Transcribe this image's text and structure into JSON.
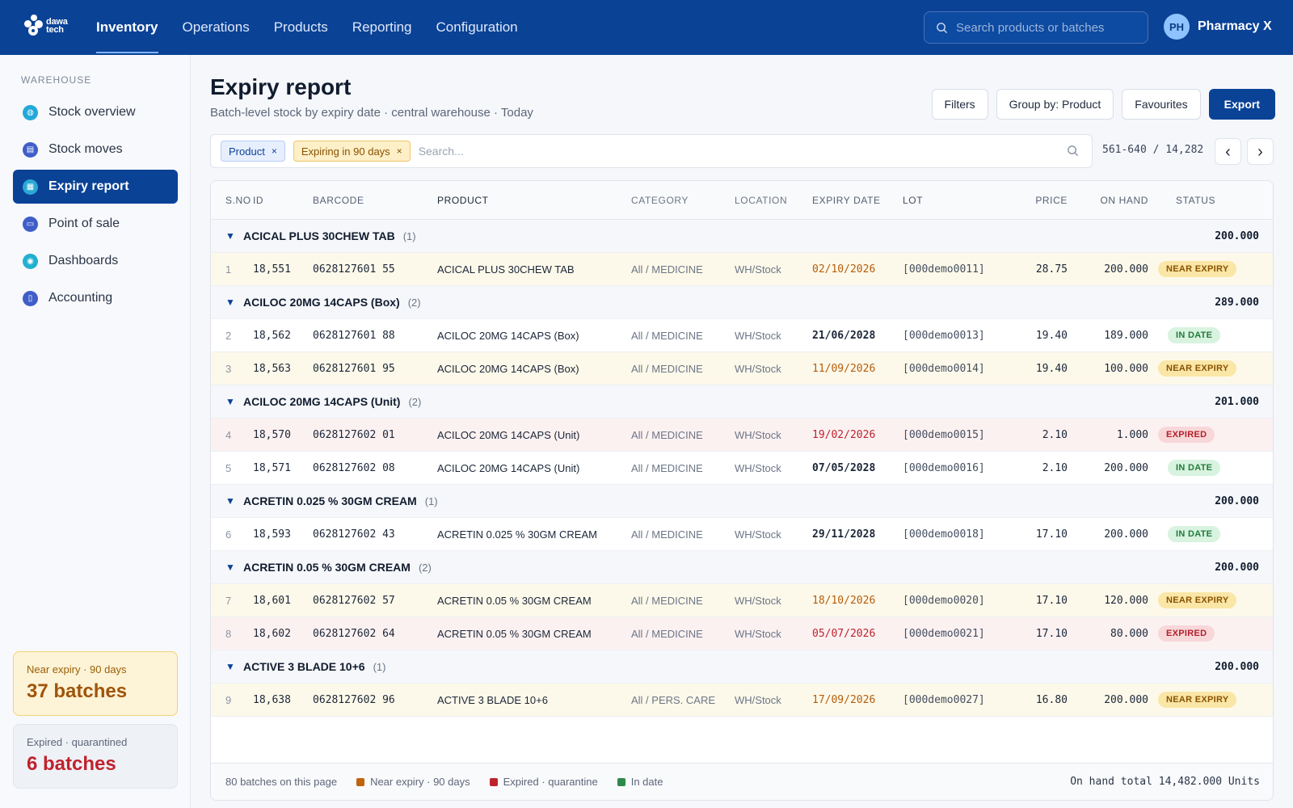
{
  "app": {
    "logo_text_1": "dawa",
    "logo_text_2": "tech",
    "nav": [
      {
        "label": "Inventory",
        "active": true
      },
      {
        "label": "Operations"
      },
      {
        "label": "Products"
      },
      {
        "label": "Reporting"
      },
      {
        "label": "Configuration"
      }
    ],
    "search_placeholder": "Search products or batches",
    "user": {
      "initials": "PH",
      "name": "Pharmacy X"
    }
  },
  "sidebar": {
    "section": "WAREHOUSE",
    "items": [
      {
        "label": "Stock overview",
        "icon": "globe-icon"
      },
      {
        "label": "Stock moves",
        "icon": "truck-icon"
      },
      {
        "label": "Expiry report",
        "icon": "calendar-icon",
        "active": true
      },
      {
        "label": "Point of sale",
        "icon": "monitor-icon"
      },
      {
        "label": "Dashboards",
        "icon": "gauge-icon"
      },
      {
        "label": "Accounting",
        "icon": "document-icon"
      }
    ],
    "near_card": {
      "label": "Near expiry · 90 days",
      "value": "37 batches"
    },
    "expired_card": {
      "label": "Expired · quarantined",
      "value": "6 batches"
    }
  },
  "page": {
    "title": "Expiry report",
    "subtitle": "Batch-level stock by expiry date · central warehouse · Today",
    "actions": {
      "filters": "Filters",
      "group_by": "Group by: Product",
      "favourites": "Favourites",
      "export": "Export"
    }
  },
  "filterbar": {
    "chips": [
      "Product",
      "Expiring in 90 days"
    ],
    "placeholder": "Search...",
    "pager": "561-640 / 14,282",
    "prev": "‹",
    "next": "›"
  },
  "table": {
    "columns": [
      "S.NO",
      "ID",
      "BARCODE",
      "PRODUCT",
      "CATEGORY",
      "LOCATION",
      "EXPIRY DATE",
      "LOT",
      "PRICE",
      "ON HAND",
      "STATUS"
    ],
    "groups": [
      {
        "name": "ACICAL PLUS 30CHEW TAB",
        "count": "(1)",
        "total": "200.000",
        "rows": [
          {
            "sno": "1",
            "id": "18,551",
            "barcode": "0628127601 55",
            "product": "ACICAL PLUS 30CHEW TAB",
            "category": "All / MEDICINE",
            "location": "WH/Stock",
            "expiry": "02/10/2026",
            "lot": "[000demo0011]",
            "price": "28.75",
            "on_hand": "200.000",
            "status": "NEAR EXPIRY",
            "kind": "near"
          }
        ]
      },
      {
        "name": "ACILOC 20MG 14CAPS (Box)",
        "count": "(2)",
        "total": "289.000",
        "rows": [
          {
            "sno": "2",
            "id": "18,562",
            "barcode": "0628127601 88",
            "product": "ACILOC 20MG 14CAPS (Box)",
            "category": "All / MEDICINE",
            "location": "WH/Stock",
            "expiry": "21/06/2028",
            "lot": "[000demo0013]",
            "price": "19.40",
            "on_hand": "189.000",
            "status": "IN DATE",
            "kind": "ok"
          },
          {
            "sno": "3",
            "id": "18,563",
            "barcode": "0628127601 95",
            "product": "ACILOC 20MG 14CAPS (Box)",
            "category": "All / MEDICINE",
            "location": "WH/Stock",
            "expiry": "11/09/2026",
            "lot": "[000demo0014]",
            "price": "19.40",
            "on_hand": "100.000",
            "status": "NEAR EXPIRY",
            "kind": "near"
          }
        ]
      },
      {
        "name": "ACILOC 20MG 14CAPS (Unit)",
        "count": "(2)",
        "total": "201.000",
        "rows": [
          {
            "sno": "4",
            "id": "18,570",
            "barcode": "0628127602 01",
            "product": "ACILOC 20MG 14CAPS (Unit)",
            "category": "All / MEDICINE",
            "location": "WH/Stock",
            "expiry": "19/02/2026",
            "lot": "[000demo0015]",
            "price": "2.10",
            "on_hand": "1.000",
            "status": "EXPIRED",
            "kind": "expired"
          },
          {
            "sno": "5",
            "id": "18,571",
            "barcode": "0628127602 08",
            "product": "ACILOC 20MG 14CAPS (Unit)",
            "category": "All / MEDICINE",
            "location": "WH/Stock",
            "expiry": "07/05/2028",
            "lot": "[000demo0016]",
            "price": "2.10",
            "on_hand": "200.000",
            "status": "IN DATE",
            "kind": "ok"
          }
        ]
      },
      {
        "name": "ACRETIN 0.025 % 30GM CREAM",
        "count": "(1)",
        "total": "200.000",
        "rows": [
          {
            "sno": "6",
            "id": "18,593",
            "barcode": "0628127602 43",
            "product": "ACRETIN 0.025 % 30GM CREAM",
            "category": "All / MEDICINE",
            "location": "WH/Stock",
            "expiry": "29/11/2028",
            "lot": "[000demo0018]",
            "price": "17.10",
            "on_hand": "200.000",
            "status": "IN DATE",
            "kind": "ok"
          }
        ]
      },
      {
        "name": "ACRETIN 0.05 % 30GM CREAM",
        "count": "(2)",
        "total": "200.000",
        "rows": [
          {
            "sno": "7",
            "id": "18,601",
            "barcode": "0628127602 57",
            "product": "ACRETIN 0.05 % 30GM CREAM",
            "category": "All / MEDICINE",
            "location": "WH/Stock",
            "expiry": "18/10/2026",
            "lot": "[000demo0020]",
            "price": "17.10",
            "on_hand": "120.000",
            "status": "NEAR EXPIRY",
            "kind": "near"
          },
          {
            "sno": "8",
            "id": "18,602",
            "barcode": "0628127602 64",
            "product": "ACRETIN 0.05 % 30GM CREAM",
            "category": "All / MEDICINE",
            "location": "WH/Stock",
            "expiry": "05/07/2026",
            "lot": "[000demo0021]",
            "price": "17.10",
            "on_hand": "80.000",
            "status": "EXPIRED",
            "kind": "expired"
          }
        ]
      },
      {
        "name": "ACTIVE 3 BLADE 10+6",
        "count": "(1)",
        "total": "200.000",
        "rows": [
          {
            "sno": "9",
            "id": "18,638",
            "barcode": "0628127602 96",
            "product": "ACTIVE 3 BLADE 10+6",
            "category": "All / PERS. CARE",
            "location": "WH/Stock",
            "expiry": "17/09/2026",
            "lot": "[000demo0027]",
            "price": "16.80",
            "on_hand": "200.000",
            "status": "NEAR EXPIRY",
            "kind": "near"
          }
        ]
      }
    ]
  },
  "footer": {
    "count": "80 batches on this page",
    "legend": [
      {
        "label": "Near expiry · 90 days",
        "color": "#c0640c"
      },
      {
        "label": "Expired · quarantine",
        "color": "#c0222d"
      },
      {
        "label": "In date",
        "color": "#2e8a4a"
      }
    ],
    "total": "On hand total 14,482.000 Units"
  },
  "colors": {
    "brand": "#0a4296",
    "near": "#b55d0b",
    "expired": "#c0222d",
    "ok": "#237a3c"
  }
}
